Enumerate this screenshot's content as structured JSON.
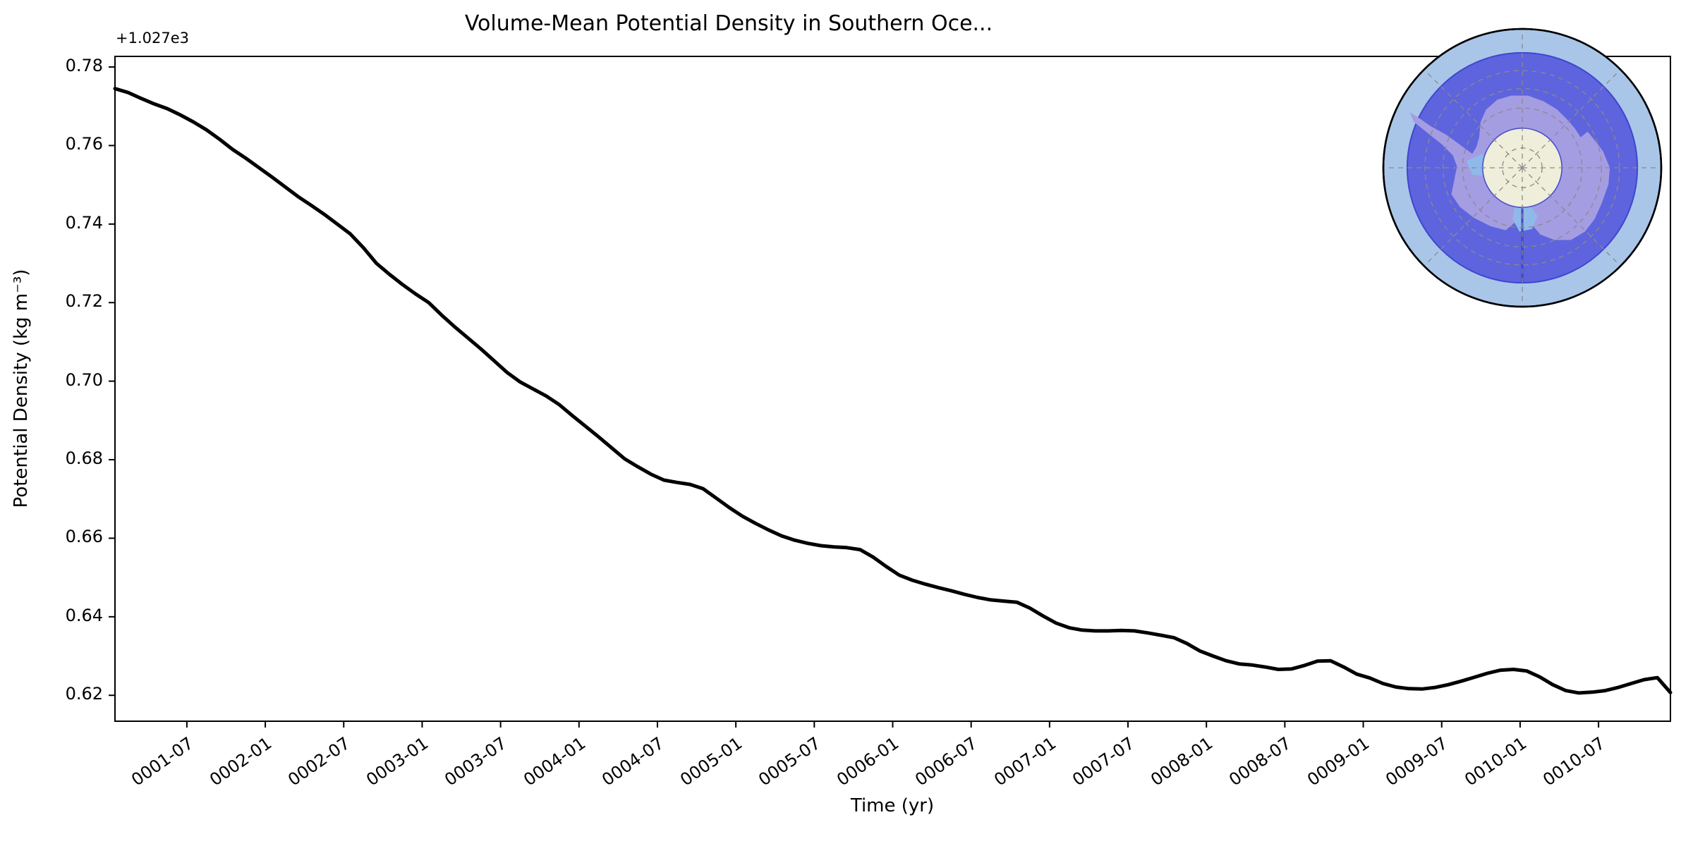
{
  "style": {
    "background": "#ffffff",
    "spine_color": "#000000",
    "tick_color": "#000000",
    "text_color": "#000000"
  },
  "chart_data": {
    "type": "line",
    "title": "Volume-Mean Potential Density in Southern Oce...",
    "xlabel": "Time (yr)",
    "ylabel": "Potential Density (kg m⁻³)",
    "y_offset_label": "+1.027e3",
    "y_offset_value": 1027,
    "x_start": "0001-01",
    "x_end": "0010-12",
    "x_freq": "monthly",
    "ylim_offset": [
      0.6134,
      0.7827
    ],
    "grid": false,
    "legend": "none",
    "y_ticks": [
      0.62,
      0.64,
      0.66,
      0.68,
      0.7,
      0.72,
      0.74,
      0.76,
      0.78
    ],
    "x_ticks": [
      {
        "month": 6,
        "label": "0001-07"
      },
      {
        "month": 12,
        "label": "0002-01"
      },
      {
        "month": 18,
        "label": "0002-07"
      },
      {
        "month": 24,
        "label": "0003-01"
      },
      {
        "month": 30,
        "label": "0003-07"
      },
      {
        "month": 36,
        "label": "0004-01"
      },
      {
        "month": 42,
        "label": "0004-07"
      },
      {
        "month": 48,
        "label": "0005-01"
      },
      {
        "month": 54,
        "label": "0005-07"
      },
      {
        "month": 60,
        "label": "0006-01"
      },
      {
        "month": 66,
        "label": "0006-07"
      },
      {
        "month": 72,
        "label": "0007-01"
      },
      {
        "month": 78,
        "label": "0007-07"
      },
      {
        "month": 84,
        "label": "0008-01"
      },
      {
        "month": 90,
        "label": "0008-07"
      },
      {
        "month": 96,
        "label": "0009-01"
      },
      {
        "month": 102,
        "label": "0009-07"
      },
      {
        "month": 108,
        "label": "0010-01"
      },
      {
        "month": 114,
        "label": "0010-07"
      }
    ],
    "series": [
      {
        "name": "volume-mean potential density",
        "color": "#000000",
        "linewidth": 5,
        "values_are_offset_from": 1027,
        "values": [
          0.7745,
          0.7735,
          0.772,
          0.7706,
          0.7694,
          0.7678,
          0.766,
          0.764,
          0.7616,
          0.759,
          0.7568,
          0.7544,
          0.752,
          0.7495,
          0.747,
          0.7448,
          0.7425,
          0.74,
          0.7375,
          0.734,
          0.73,
          0.7272,
          0.7246,
          0.7222,
          0.72,
          0.7168,
          0.7138,
          0.711,
          0.7082,
          0.7052,
          0.7022,
          0.6998,
          0.698,
          0.6962,
          0.694,
          0.6912,
          0.6885,
          0.6858,
          0.683,
          0.6802,
          0.6782,
          0.6763,
          0.6748,
          0.6742,
          0.6737,
          0.6726,
          0.6702,
          0.6678,
          0.6656,
          0.6638,
          0.6621,
          0.6606,
          0.6595,
          0.6587,
          0.6581,
          0.6578,
          0.6576,
          0.6571,
          0.6552,
          0.6528,
          0.6506,
          0.6493,
          0.6483,
          0.6474,
          0.6466,
          0.6457,
          0.6449,
          0.6443,
          0.644,
          0.6437,
          0.6422,
          0.6402,
          0.6384,
          0.6372,
          0.6366,
          0.6364,
          0.6364,
          0.6365,
          0.6364,
          0.6359,
          0.6353,
          0.6347,
          0.6332,
          0.6313,
          0.63,
          0.6288,
          0.628,
          0.6277,
          0.6272,
          0.6266,
          0.6267,
          0.6276,
          0.6287,
          0.6288,
          0.6272,
          0.6254,
          0.6244,
          0.623,
          0.6221,
          0.6217,
          0.6216,
          0.622,
          0.6227,
          0.6236,
          0.6246,
          0.6256,
          0.6264,
          0.6266,
          0.6262,
          0.6247,
          0.6227,
          0.6212,
          0.6206,
          0.6208,
          0.6212,
          0.622,
          0.623,
          0.624,
          0.6245,
          0.6207
        ]
      }
    ]
  },
  "inset_map": {
    "name": "south-polar-stereographic-map-of-southern-ocean",
    "colors": {
      "outer_ring_ocean": "#a9c6e8",
      "region_ocean": "#5e64dd",
      "region_edge": "#3f46d0",
      "continent": "#a49de2",
      "ice_shelf": "#8fb9ea",
      "pole_hole": "#efeeda",
      "pole_hole_edge": "#4a50cc",
      "graticule": "#8a8a8a",
      "outline": "#000000"
    }
  }
}
